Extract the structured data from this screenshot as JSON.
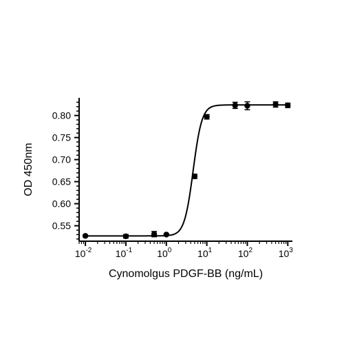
{
  "chart_data": {
    "type": "scatter",
    "xscale": "log",
    "xlabel": "Cynomolgus PDGF-BB (ng/mL)",
    "ylabel": "OD 450nm",
    "xlim": [
      0.007,
      1300
    ],
    "ylim": [
      0.515,
      0.84
    ],
    "x_ticks": [
      {
        "value": 0.01,
        "base": "10",
        "exp": "-2"
      },
      {
        "value": 0.1,
        "base": "10",
        "exp": "-1"
      },
      {
        "value": 1,
        "base": "10",
        "exp": "0"
      },
      {
        "value": 10,
        "base": "10",
        "exp": "1"
      },
      {
        "value": 100,
        "base": "10",
        "exp": "2"
      },
      {
        "value": 1000,
        "base": "10",
        "exp": "3"
      }
    ],
    "y_ticks": [
      "0.55",
      "0.60",
      "0.65",
      "0.70",
      "0.75",
      "0.80"
    ],
    "series": [
      {
        "points": [
          {
            "x": 0.01,
            "y": 0.527,
            "err": 0.002
          },
          {
            "x": 0.1,
            "y": 0.526,
            "err": 0.004
          },
          {
            "x": 0.5,
            "y": 0.531,
            "err": 0.006
          },
          {
            "x": 1,
            "y": 0.53,
            "err": 0.002
          },
          {
            "x": 5,
            "y": 0.662,
            "err": 0.005
          },
          {
            "x": 10,
            "y": 0.797,
            "err": 0.005
          },
          {
            "x": 50,
            "y": 0.823,
            "err": 0.007
          },
          {
            "x": 100,
            "y": 0.822,
            "err": 0.009
          },
          {
            "x": 500,
            "y": 0.825,
            "err": 0.006
          },
          {
            "x": 1000,
            "y": 0.823,
            "err": 0.005
          }
        ]
      }
    ],
    "fit": {
      "model": "4PL",
      "bottom": 0.527,
      "top": 0.824,
      "ec50": 4.6,
      "hill": 4.0
    },
    "grid": false,
    "marker_color": "#000000",
    "line_color": "#000000"
  }
}
